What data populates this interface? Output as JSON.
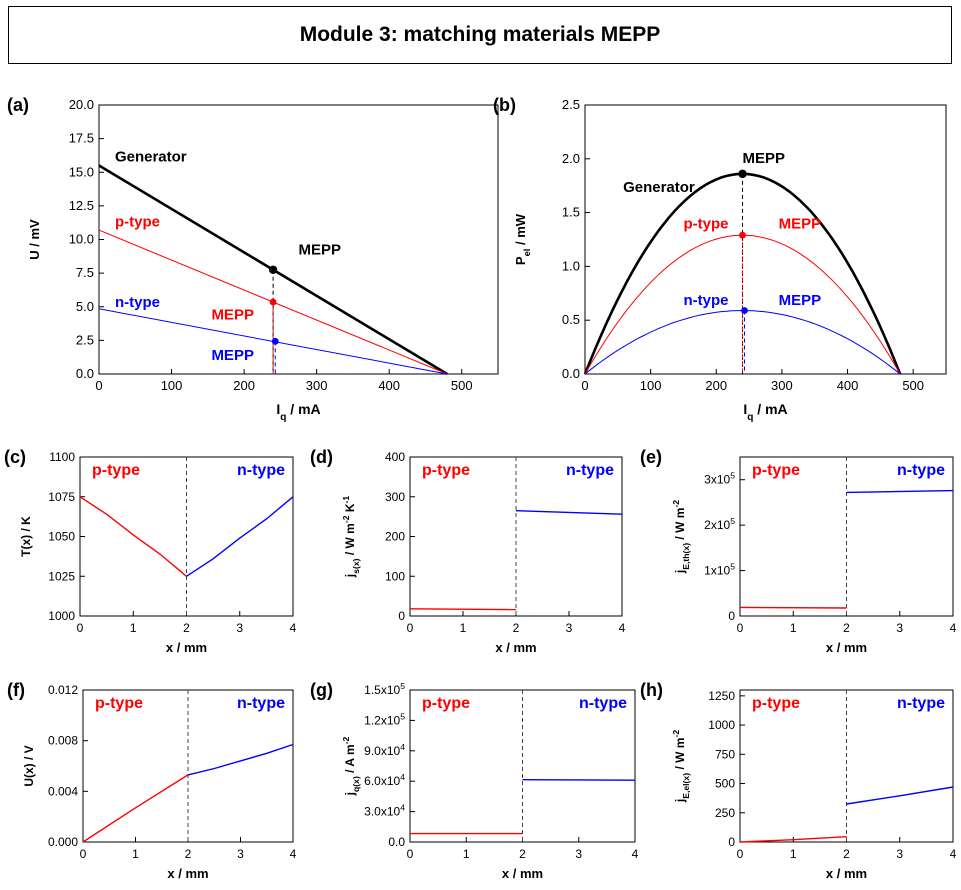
{
  "page_title": "Module 3: matching materials MEPP",
  "colors": {
    "generator": "#000000",
    "p_type": "#ff0000",
    "n_type": "#0000ff"
  },
  "chart_data": [
    {
      "panel": "(a)",
      "type": "line",
      "xlabel": "I_q / mA",
      "ylabel": "U / mV",
      "xlim": [
        0,
        550
      ],
      "ylim": [
        0,
        20
      ],
      "xticks": [
        0,
        100,
        200,
        300,
        400,
        500
      ],
      "xtick_labels": [
        "0",
        "100",
        "200",
        "300",
        "400",
        "500"
      ],
      "yticks": [
        0,
        2.5,
        5,
        7.5,
        10,
        12.5,
        15,
        17.5,
        20
      ],
      "ytick_labels": [
        "0.0",
        "2.5",
        "5.0",
        "7.5",
        "10.0",
        "12.5",
        "15.0",
        "17.5",
        "20.0"
      ],
      "series": [
        {
          "name": "Generator",
          "color": "#000000",
          "x": [
            0,
            480
          ],
          "y": [
            15.5,
            0
          ]
        },
        {
          "name": "p-type",
          "color": "#ff0000",
          "x": [
            0,
            480
          ],
          "y": [
            10.7,
            0
          ]
        },
        {
          "name": "n-type",
          "color": "#0000ff",
          "x": [
            0,
            480
          ],
          "y": [
            4.85,
            0
          ]
        }
      ],
      "mepp_points": [
        {
          "color": "#000000",
          "x": 240,
          "y": 7.75
        },
        {
          "color": "#ff0000",
          "x": 240,
          "y": 5.35
        },
        {
          "color": "#0000ff",
          "x": 243,
          "y": 2.43
        }
      ],
      "annotations": [
        {
          "text": "Generator",
          "color": "#000000",
          "x": 22,
          "y": 15.8
        },
        {
          "text": "p-type",
          "color": "#ff0000",
          "x": 22,
          "y": 10.95
        },
        {
          "text": "MEPP",
          "color": "#000000",
          "x": 275,
          "y": 8.9
        },
        {
          "text": "n-type",
          "color": "#0000ff",
          "x": 22,
          "y": 5.0
        },
        {
          "text": "MEPP",
          "color": "#ff0000",
          "x": 155,
          "y": 4.05
        },
        {
          "text": "MEPP",
          "color": "#0000ff",
          "x": 155,
          "y": 1.05
        }
      ]
    },
    {
      "panel": "(b)",
      "type": "line",
      "xlabel": "I_q / mA",
      "ylabel": "P_el / mW",
      "xlim": [
        0,
        550
      ],
      "ylim": [
        0,
        2.5
      ],
      "xticks": [
        0,
        100,
        200,
        300,
        400,
        500
      ],
      "xtick_labels": [
        "0",
        "100",
        "200",
        "300",
        "400",
        "500"
      ],
      "yticks": [
        0,
        0.5,
        1,
        1.5,
        2,
        2.5
      ],
      "ytick_labels": [
        "0.0",
        "0.5",
        "1.0",
        "1.5",
        "2.0",
        "2.5"
      ],
      "series": [
        {
          "name": "Generator",
          "color": "#000000",
          "curve": "parabola",
          "x0": 0,
          "x1": 480,
          "peak": 1.86
        },
        {
          "name": "p-type",
          "color": "#ff0000",
          "curve": "parabola",
          "x0": 0,
          "x1": 480,
          "peak": 1.29
        },
        {
          "name": "n-type",
          "color": "#0000ff",
          "curve": "parabola",
          "x0": 0,
          "x1": 480,
          "peak": 0.59
        }
      ],
      "mepp_points": [
        {
          "color": "#000000",
          "x": 240,
          "y": 1.86
        },
        {
          "color": "#ff0000",
          "x": 240,
          "y": 1.29
        },
        {
          "color": "#0000ff",
          "x": 243,
          "y": 0.59
        }
      ],
      "annotations": [
        {
          "text": "MEPP",
          "color": "#000000",
          "x": 240,
          "y": 1.96
        },
        {
          "text": "Generator",
          "color": "#000000",
          "x": 58,
          "y": 1.69
        },
        {
          "text": "p-type",
          "color": "#ff0000",
          "x": 150,
          "y": 1.35
        },
        {
          "text": "MEPP",
          "color": "#ff0000",
          "x": 295,
          "y": 1.35
        },
        {
          "text": "n-type",
          "color": "#0000ff",
          "x": 150,
          "y": 0.64
        },
        {
          "text": "MEPP",
          "color": "#0000ff",
          "x": 295,
          "y": 0.64
        }
      ]
    },
    {
      "panel": "(c)",
      "type": "line",
      "xlabel": "x / mm",
      "ylabel": "T(x) / K",
      "xlim": [
        0,
        4
      ],
      "ylim": [
        1000,
        1100
      ],
      "xticks": [
        0,
        1,
        2,
        3,
        4
      ],
      "xtick_labels": [
        "0",
        "1",
        "2",
        "3",
        "4"
      ],
      "yticks": [
        1000,
        1025,
        1050,
        1075,
        1100
      ],
      "ytick_labels": [
        "1000",
        "1025",
        "1050",
        "1075",
        "1100"
      ],
      "divider_x": 2,
      "series": [
        {
          "name": "p-type",
          "color": "#ff0000",
          "x": [
            0,
            0.5,
            1,
            1.5,
            2
          ],
          "y": [
            1075,
            1064,
            1051,
            1039,
            1025
          ]
        },
        {
          "name": "n-type",
          "color": "#0000ff",
          "x": [
            2,
            2.5,
            3,
            3.5,
            4
          ],
          "y": [
            1025,
            1036,
            1049,
            1061,
            1075
          ]
        }
      ],
      "region_labels": [
        {
          "text": "p-type",
          "color": "#ff0000"
        },
        {
          "text": "n-type",
          "color": "#0000ff"
        }
      ]
    },
    {
      "panel": "(d)",
      "type": "line",
      "xlabel": "x / mm",
      "ylabel": "j_s(x) / W m^-2 K^-1",
      "xlim": [
        0,
        4
      ],
      "ylim": [
        0,
        400
      ],
      "xticks": [
        0,
        1,
        2,
        3,
        4
      ],
      "xtick_labels": [
        "0",
        "1",
        "2",
        "3",
        "4"
      ],
      "yticks": [
        0,
        100,
        200,
        300,
        400
      ],
      "ytick_labels": [
        "0",
        "100",
        "200",
        "300",
        "400"
      ],
      "divider_x": 2,
      "series": [
        {
          "name": "p-type",
          "color": "#ff0000",
          "x": [
            0,
            2
          ],
          "y": [
            18,
            16
          ]
        },
        {
          "name": "n-type",
          "color": "#0000ff",
          "x": [
            2,
            4
          ],
          "y": [
            265,
            256
          ]
        }
      ],
      "region_labels": [
        {
          "text": "p-type",
          "color": "#ff0000"
        },
        {
          "text": "n-type",
          "color": "#0000ff"
        }
      ]
    },
    {
      "panel": "(e)",
      "type": "line",
      "xlabel": "x / mm",
      "ylabel": "j_E,th(x) / W m^-2",
      "xlim": [
        0,
        4
      ],
      "ylim": [
        0,
        350000
      ],
      "xticks": [
        0,
        1,
        2,
        3,
        4
      ],
      "xtick_labels": [
        "0",
        "1",
        "2",
        "3",
        "4"
      ],
      "yticks": [
        0,
        100000,
        200000,
        300000
      ],
      "ytick_labels": [
        "0",
        "1x10^5",
        "2x10^5",
        "3x10^5"
      ],
      "divider_x": 2,
      "series": [
        {
          "name": "p-type",
          "color": "#ff0000",
          "x": [
            0,
            2
          ],
          "y": [
            19000,
            17500
          ]
        },
        {
          "name": "n-type",
          "color": "#0000ff",
          "x": [
            2,
            4
          ],
          "y": [
            272000,
            276000
          ]
        }
      ],
      "region_labels": [
        {
          "text": "p-type",
          "color": "#ff0000"
        },
        {
          "text": "n-type",
          "color": "#0000ff"
        }
      ]
    },
    {
      "panel": "(f)",
      "type": "line",
      "xlabel": "x / mm",
      "ylabel": "U(x) / V",
      "xlim": [
        0,
        4
      ],
      "ylim": [
        0,
        0.012
      ],
      "xticks": [
        0,
        1,
        2,
        3,
        4
      ],
      "xtick_labels": [
        "0",
        "1",
        "2",
        "3",
        "4"
      ],
      "yticks": [
        0,
        0.004,
        0.008,
        0.012
      ],
      "ytick_labels": [
        "0.000",
        "0.004",
        "0.008",
        "0.012"
      ],
      "divider_x": 2,
      "series": [
        {
          "name": "p-type",
          "color": "#ff0000",
          "x": [
            0,
            1,
            2
          ],
          "y": [
            0,
            0.0027,
            0.0053
          ]
        },
        {
          "name": "n-type",
          "color": "#0000ff",
          "x": [
            2,
            2.5,
            3,
            3.5,
            4
          ],
          "y": [
            0.0053,
            0.0058,
            0.0064,
            0.007,
            0.0077
          ]
        }
      ],
      "region_labels": [
        {
          "text": "p-type",
          "color": "#ff0000"
        },
        {
          "text": "n-type",
          "color": "#0000ff"
        }
      ]
    },
    {
      "panel": "(g)",
      "type": "line",
      "xlabel": "x / mm",
      "ylabel": "j_q(x) / A m^-2",
      "xlim": [
        0,
        4
      ],
      "ylim": [
        0,
        150000
      ],
      "xticks": [
        0,
        1,
        2,
        3,
        4
      ],
      "xtick_labels": [
        "0",
        "1",
        "2",
        "3",
        "4"
      ],
      "yticks": [
        0,
        30000,
        60000,
        90000,
        120000,
        150000
      ],
      "ytick_labels": [
        "0.0",
        "3.0x10^4",
        "6.0x10^4",
        "9.0x10^4",
        "1.2x10^5",
        "1.5x10^5"
      ],
      "divider_x": 2,
      "series": [
        {
          "name": "p-type",
          "color": "#ff0000",
          "x": [
            0,
            2
          ],
          "y": [
            8300,
            8300
          ]
        },
        {
          "name": "n-type",
          "color": "#0000ff",
          "x": [
            2,
            4
          ],
          "y": [
            61500,
            61000
          ]
        }
      ],
      "region_labels": [
        {
          "text": "p-type",
          "color": "#ff0000"
        },
        {
          "text": "n-type",
          "color": "#0000ff"
        }
      ]
    },
    {
      "panel": "(h)",
      "type": "line",
      "xlabel": "x / mm",
      "ylabel": "j_E,el(x) / W m^-2",
      "xlim": [
        0,
        4
      ],
      "ylim": [
        0,
        1300
      ],
      "xticks": [
        0,
        1,
        2,
        3,
        4
      ],
      "xtick_labels": [
        "0",
        "1",
        "2",
        "3",
        "4"
      ],
      "yticks": [
        0,
        250,
        500,
        750,
        1000,
        1250
      ],
      "ytick_labels": [
        "0",
        "250",
        "500",
        "750",
        "1000",
        "1250"
      ],
      "divider_x": 2,
      "series": [
        {
          "name": "p-type",
          "color": "#ff0000",
          "x": [
            0,
            1,
            2
          ],
          "y": [
            0,
            20,
            45
          ]
        },
        {
          "name": "n-type",
          "color": "#0000ff",
          "x": [
            2,
            3,
            4
          ],
          "y": [
            325,
            395,
            470
          ]
        }
      ],
      "region_labels": [
        {
          "text": "p-type",
          "color": "#ff0000"
        },
        {
          "text": "n-type",
          "color": "#0000ff"
        }
      ]
    }
  ]
}
